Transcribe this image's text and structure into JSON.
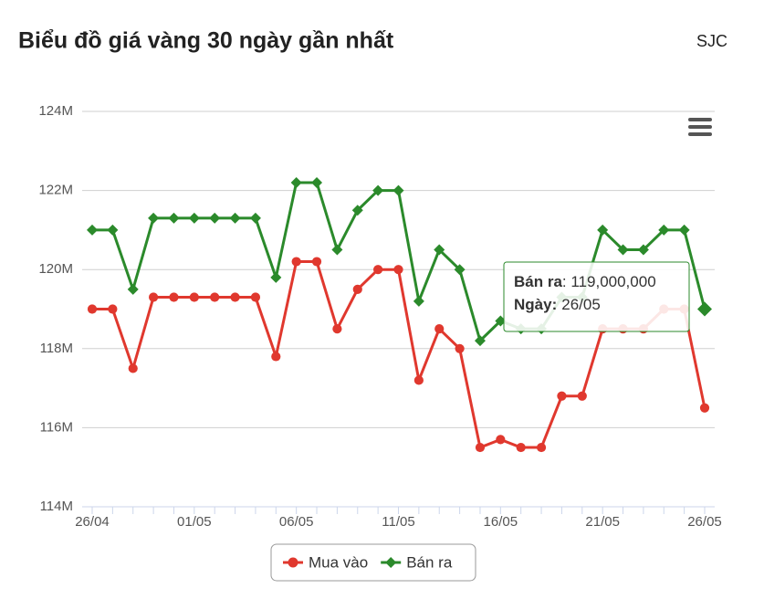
{
  "chart_data": {
    "type": "line",
    "title": "Biểu đồ giá vàng 30 ngày gần nhất",
    "source": "SJC",
    "categories": [
      "26/04",
      null,
      null,
      null,
      null,
      "01/05",
      null,
      null,
      null,
      null,
      "06/05",
      null,
      null,
      null,
      null,
      "11/05",
      null,
      null,
      null,
      null,
      "16/05",
      null,
      null,
      null,
      null,
      "21/05",
      null,
      null,
      null,
      null,
      "26/05"
    ],
    "series": [
      {
        "name": "Mua vào",
        "color": "#e0382e",
        "marker": "circle",
        "values": [
          119.0,
          119.0,
          117.5,
          119.3,
          119.3,
          119.3,
          119.3,
          119.3,
          119.3,
          117.8,
          120.2,
          120.2,
          118.5,
          119.5,
          120.0,
          120.0,
          117.2,
          118.5,
          118.0,
          115.5,
          115.7,
          115.5,
          115.5,
          116.8,
          116.8,
          118.5,
          118.5,
          118.5,
          119.0,
          119.0,
          116.5
        ]
      },
      {
        "name": "Bán ra",
        "color": "#2b8a2b",
        "marker": "diamond",
        "values": [
          121.0,
          121.0,
          119.5,
          121.3,
          121.3,
          121.3,
          121.3,
          121.3,
          121.3,
          119.8,
          122.2,
          122.2,
          120.5,
          121.5,
          122.0,
          122.0,
          119.2,
          120.5,
          120.0,
          118.2,
          118.7,
          118.5,
          118.5,
          119.3,
          119.3,
          121.0,
          120.5,
          120.5,
          121.0,
          121.0,
          119.0
        ]
      }
    ],
    "ylim": [
      114,
      124
    ],
    "yticks": [
      {
        "value": 114,
        "label": "114M"
      },
      {
        "value": 116,
        "label": "116M"
      },
      {
        "value": 118,
        "label": "118M"
      },
      {
        "value": 120,
        "label": "120M"
      },
      {
        "value": 122,
        "label": "122M"
      },
      {
        "value": 124,
        "label": "124M"
      }
    ],
    "grid": true,
    "legend": "bottom",
    "tooltip": {
      "series": 1,
      "index": 30,
      "key": "Bán ra",
      "text": ": 119,000,000",
      "date_key": "Ngày:",
      "date": "26/05"
    }
  }
}
